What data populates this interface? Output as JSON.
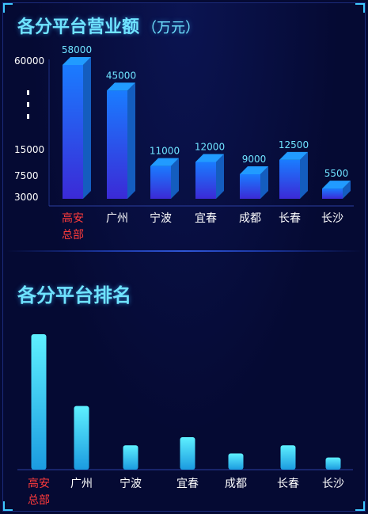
{
  "revenue_chart": {
    "title": "各分平台营业额",
    "unit": "（万元）"
  },
  "ranking_chart": {
    "title": "各分平台排名"
  },
  "chart_data": [
    {
      "type": "bar",
      "title": "各分平台营业额（万元）",
      "categories": [
        [
          "高安",
          "总部"
        ],
        [
          "广州"
        ],
        [
          "宁波"
        ],
        [
          "宜春"
        ],
        [
          "成都"
        ],
        [
          "长春"
        ],
        [
          "长沙"
        ]
      ],
      "values": [
        58000,
        45000,
        11000,
        12000,
        9000,
        12500,
        5500
      ],
      "y_tick_labels": [
        "60000",
        "15000",
        "7500",
        "3000"
      ],
      "y_axis_break": true,
      "highlight_category_index": 0,
      "highlight_color": "#ff3b3b",
      "bar_colors": [
        "#1a7cff",
        "#3b2ad6"
      ]
    },
    {
      "type": "bar",
      "title": "各分平台排名",
      "categories": [
        [
          "高安",
          "总部"
        ],
        [
          "广州"
        ],
        [
          "宁波"
        ],
        [
          "宜春"
        ],
        [
          "成都"
        ],
        [
          "长春"
        ],
        [
          "长沙"
        ]
      ],
      "relative_heights": [
        1.0,
        0.47,
        0.18,
        0.24,
        0.12,
        0.18,
        0.09
      ],
      "highlight_category_index": 0,
      "highlight_color": "#ff3b3b",
      "bar_colors": [
        "#5ef0ff",
        "#1b9be0"
      ]
    }
  ]
}
